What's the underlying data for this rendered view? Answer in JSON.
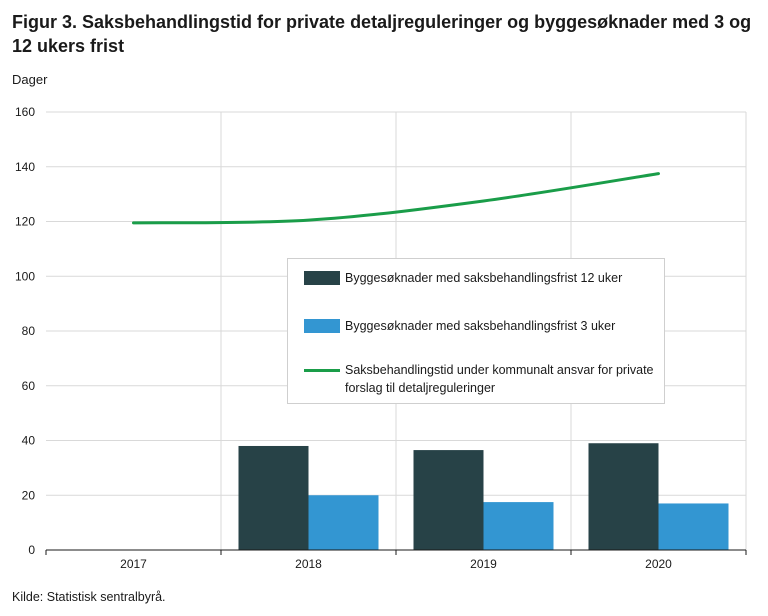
{
  "figure": {
    "title": "Figur 3. Saksbehandlingstid for private detaljreguleringer og byggesøknader med 3 og 12 ukers frist",
    "y_unit_label": "Dager",
    "source": "Kilde: Statistisk sentralbyrå."
  },
  "colors": {
    "bar_12_weeks": "#274247",
    "bar_3_weeks": "#3396d2",
    "line_detail_regulation": "#1a9d49",
    "grid": "#d9d9d9",
    "axis": "#1a1a1a"
  },
  "legend": {
    "placement": "center-right",
    "items": [
      {
        "label": "Byggesøknader med saksbehandlingsfrist 12 uker",
        "kind": "bar",
        "color": "#274247"
      },
      {
        "label": "Byggesøknader med saksbehandlingsfrist 3 uker",
        "kind": "bar",
        "color": "#3396d2"
      },
      {
        "label": "Saksbehandlingstid under kommunalt ansvar for private forslag til detaljreguleringer",
        "kind": "line",
        "color": "#1a9d49"
      }
    ]
  },
  "chart_data": {
    "type": "bar",
    "title": "Figur 3. Saksbehandlingstid for private detaljreguleringer og byggesøknader med 3 og 12 ukers frist",
    "ylabel": "Dager",
    "xlabel": "",
    "categories": [
      "2017",
      "2018",
      "2019",
      "2020"
    ],
    "ylim": [
      0,
      160
    ],
    "yticks": [
      0,
      20,
      40,
      60,
      80,
      100,
      120,
      140,
      160
    ],
    "grid": true,
    "series": [
      {
        "name": "Byggesøknader med saksbehandlingsfrist 12 uker",
        "type": "bar",
        "values": [
          null,
          38,
          36.5,
          39
        ]
      },
      {
        "name": "Byggesøknader med saksbehandlingsfrist 3 uker",
        "type": "bar",
        "values": [
          null,
          20,
          17.5,
          17
        ]
      },
      {
        "name": "Saksbehandlingstid under kommunalt ansvar for private forslag til detaljreguleringer",
        "type": "line",
        "values": [
          119.5,
          120.5,
          127.5,
          137.5
        ]
      }
    ]
  }
}
